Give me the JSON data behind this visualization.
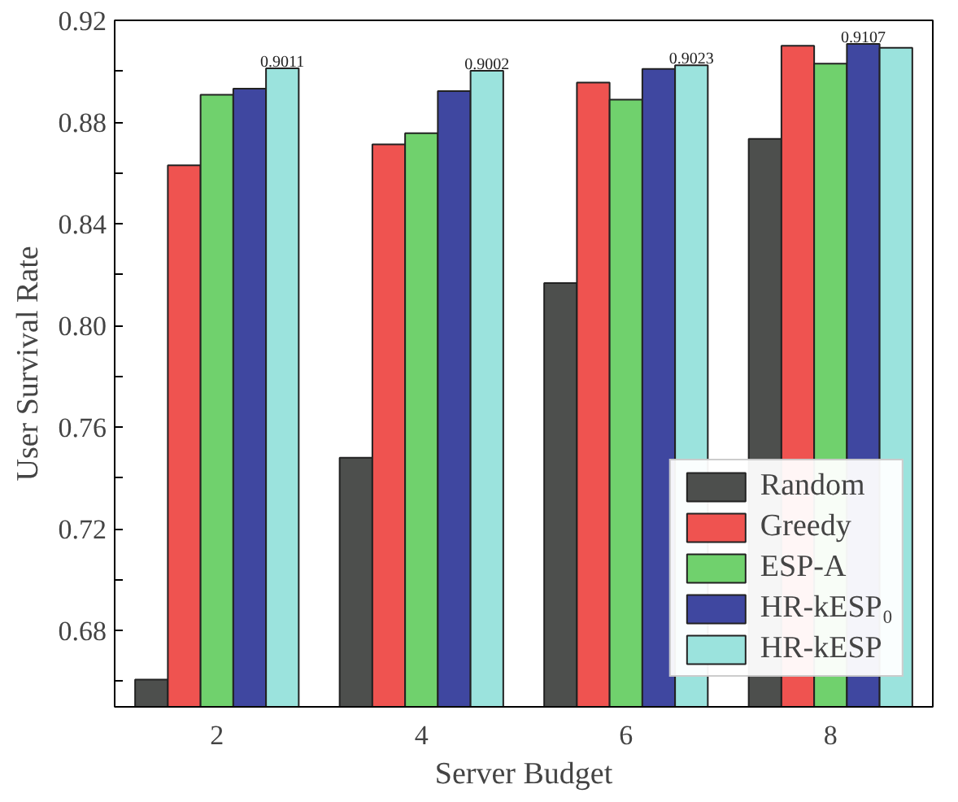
{
  "chart_data": {
    "type": "bar",
    "xlabel": "Server Budget",
    "ylabel": "User Survival Rate",
    "categories": [
      "2",
      "4",
      "6",
      "8"
    ],
    "series": [
      {
        "name": "Random",
        "color": "#4d4f4d",
        "values": [
          0.6607,
          0.748,
          0.8167,
          0.8734
        ]
      },
      {
        "name": "Greedy",
        "color": "#ef5350",
        "values": [
          0.863,
          0.8712,
          0.8955,
          0.91
        ]
      },
      {
        "name": "ESP-A",
        "color": "#70d16d",
        "values": [
          0.8907,
          0.8756,
          0.8888,
          0.903
        ]
      },
      {
        "name": "HR-kESP₀",
        "color": "#3f47a0",
        "values": [
          0.8931,
          0.8922,
          0.9009,
          0.9107
        ],
        "value_labels": [
          null,
          null,
          null,
          "0.9107"
        ]
      },
      {
        "name": "HR-kESP",
        "color": "#9be3dd",
        "values": [
          0.9011,
          0.9002,
          0.9023,
          0.9092
        ],
        "value_labels": [
          "0.9011",
          "0.9002",
          "0.9023",
          null
        ]
      }
    ],
    "ylim": [
      0.65,
      0.92
    ],
    "yticks": [
      {
        "value": 0.66,
        "label": null
      },
      0.68,
      {
        "value": 0.7,
        "label": null
      },
      0.72,
      {
        "value": 0.74,
        "label": null
      },
      0.76,
      {
        "value": 0.78,
        "label": null
      },
      {
        "value": 0.8,
        "label": "0.80"
      },
      {
        "value": 0.82,
        "label": null
      },
      0.84,
      {
        "value": 0.86,
        "label": null
      },
      0.88,
      {
        "value": 0.9,
        "label": null
      },
      0.92
    ],
    "legend": "bottom right",
    "grid": false
  }
}
